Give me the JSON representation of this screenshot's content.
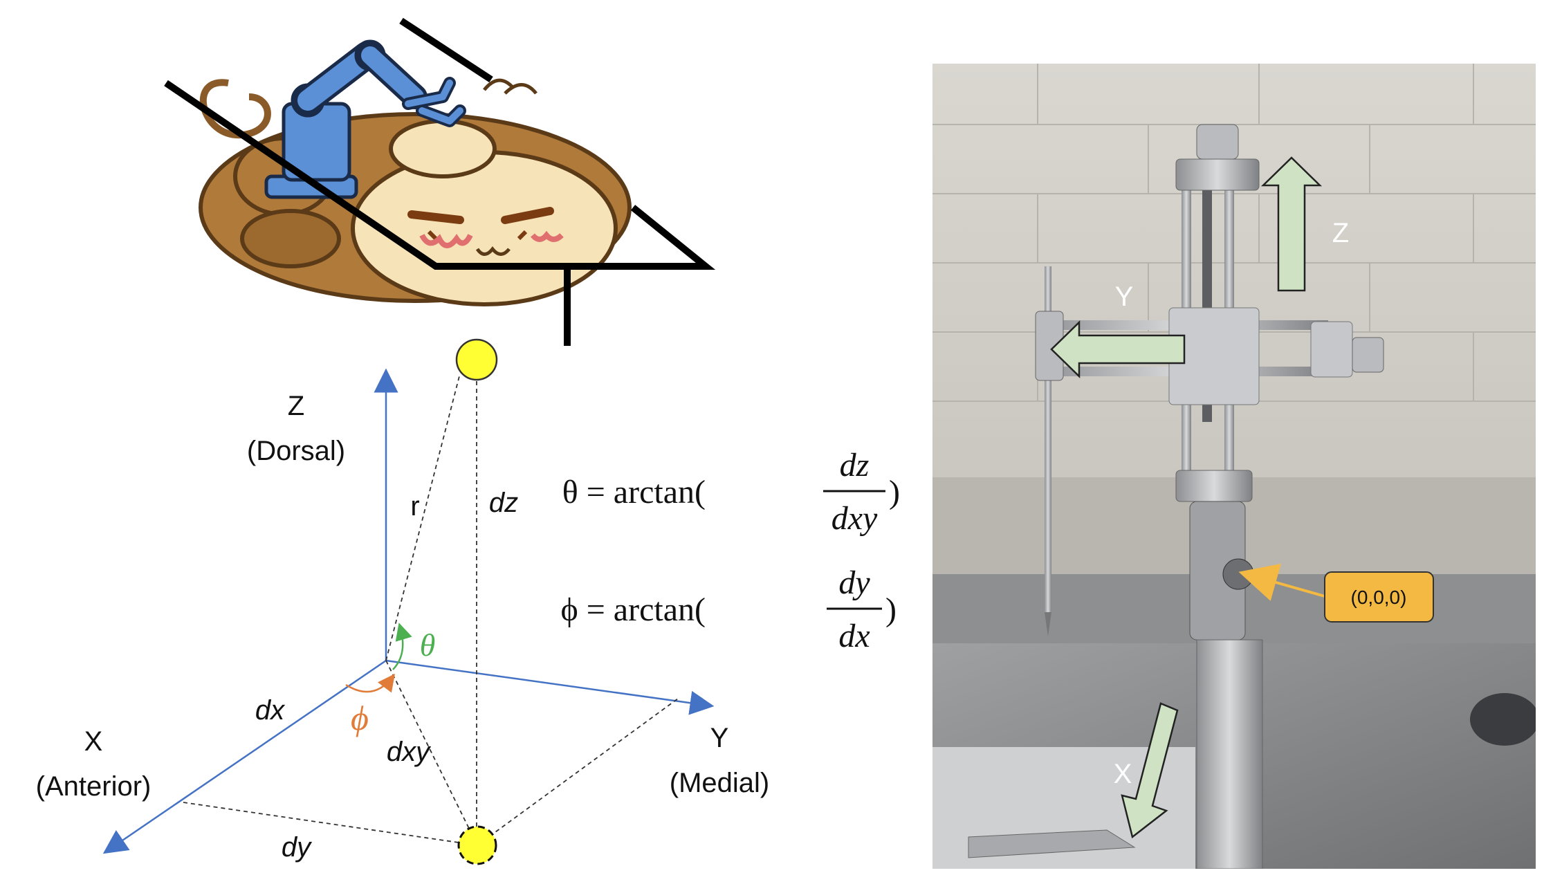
{
  "diagram": {
    "axes": {
      "z": {
        "letter": "Z",
        "name": "(Dorsal)"
      },
      "x": {
        "letter": "X",
        "name": "(Anterior)"
      },
      "y": {
        "letter": "Y",
        "name": "(Medial)"
      }
    },
    "segments": {
      "r": "r",
      "dz": "dz",
      "dx": "dx",
      "dy": "dy",
      "dxy": "dxy"
    },
    "angles": {
      "theta": "θ",
      "phi": "ϕ"
    },
    "formulas": {
      "theta": {
        "lhs": "θ = arctan(",
        "num": "dz",
        "den": "dxy",
        "close": ")"
      },
      "phi": {
        "lhs": "ϕ = arctan(",
        "num": "dy",
        "den": "dx",
        "close": ")"
      }
    },
    "colors": {
      "axis": "#4472C4",
      "theta": "#4CAF50",
      "phi": "#E07B39",
      "target": "#FFFF33",
      "robot": "#5B8FD6",
      "monkey_fur": "#B07A3A",
      "monkey_face": "#F7E3B8"
    }
  },
  "photo": {
    "labels": {
      "z": "Z",
      "y": "Y",
      "x": "X"
    },
    "origin_callout": "(0,0,0)",
    "colors": {
      "arrow_fill": "#CFE3C4",
      "callout_fill": "#F4B942",
      "callout_pointer": "#F4B942"
    }
  }
}
